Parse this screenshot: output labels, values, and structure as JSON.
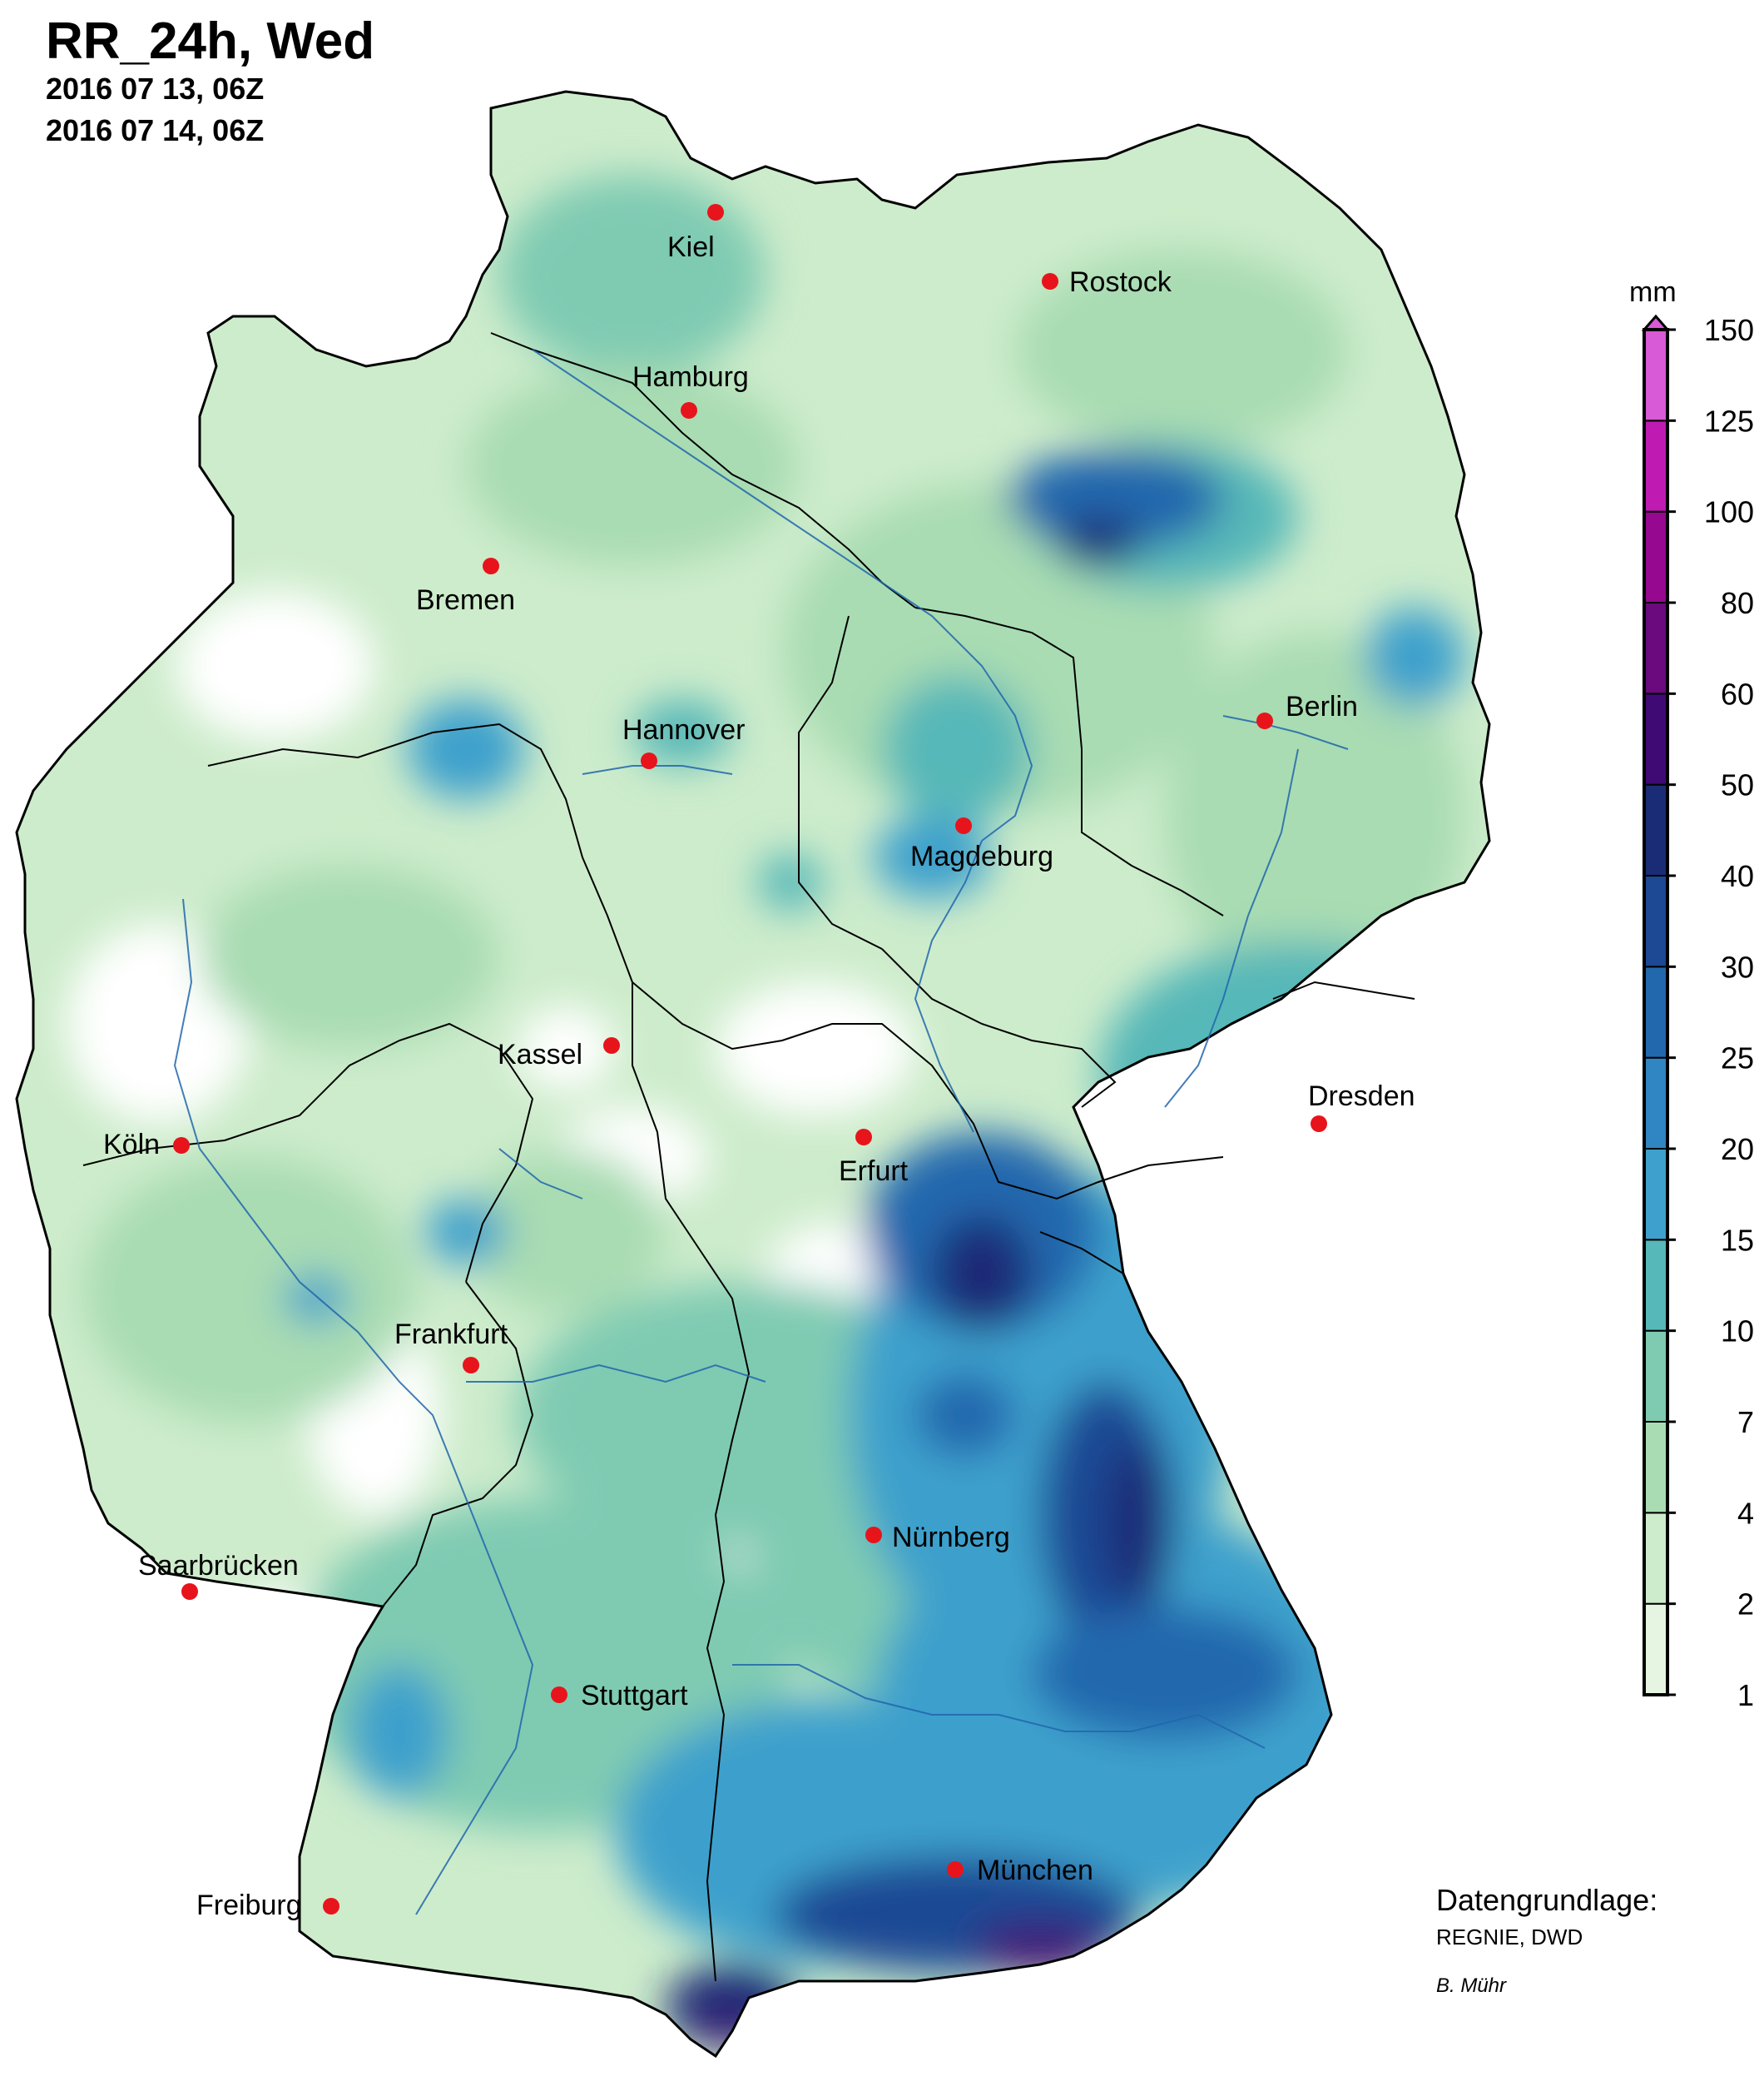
{
  "header": {
    "title": "RR_24h, Wed",
    "line1": "2016 07 13, 06Z",
    "line2": "2016 07 14, 06Z"
  },
  "legend": {
    "unit": "mm",
    "ticks": [
      "1",
      "2",
      "4",
      "7",
      "10",
      "15",
      "20",
      "25",
      "30",
      "40",
      "50",
      "60",
      "80",
      "100",
      "125",
      "150"
    ],
    "colors": [
      "#e6f5e1",
      "#cdeccb",
      "#a9dcb2",
      "#7fcbb2",
      "#56b8b8",
      "#3ea0cc",
      "#2f86c2",
      "#2268ad",
      "#1c4894",
      "#1b2c76",
      "#3f0a74",
      "#6a0a7e",
      "#96088f",
      "#bf1ab2",
      "#d95ad6"
    ]
  },
  "map": {
    "cities": [
      {
        "name": "Kiel",
        "label": "Kiel"
      },
      {
        "name": "Rostock",
        "label": "Rostock"
      },
      {
        "name": "Hamburg",
        "label": "Hamburg"
      },
      {
        "name": "Bremen",
        "label": "Bremen"
      },
      {
        "name": "Hannover",
        "label": "Hannover"
      },
      {
        "name": "Berlin",
        "label": "Berlin"
      },
      {
        "name": "Magdeburg",
        "label": "Magdeburg"
      },
      {
        "name": "Kassel",
        "label": "Kassel"
      },
      {
        "name": "Dresden",
        "label": "Dresden"
      },
      {
        "name": "Koeln",
        "label": "Köln"
      },
      {
        "name": "Erfurt",
        "label": "Erfurt"
      },
      {
        "name": "Frankfurt",
        "label": "Frankfurt"
      },
      {
        "name": "Nuernberg",
        "label": "Nürnberg"
      },
      {
        "name": "Saarbruecken",
        "label": "Saarbrücken"
      },
      {
        "name": "Stuttgart",
        "label": "Stuttgart"
      },
      {
        "name": "Freiburg",
        "label": "Freiburg"
      },
      {
        "name": "Muenchen",
        "label": "München"
      }
    ],
    "marker_color": "#e8141c"
  },
  "credits": {
    "source_title": "Datengrundlage:",
    "source": "REGNIE, DWD",
    "author": "B. Mühr"
  }
}
